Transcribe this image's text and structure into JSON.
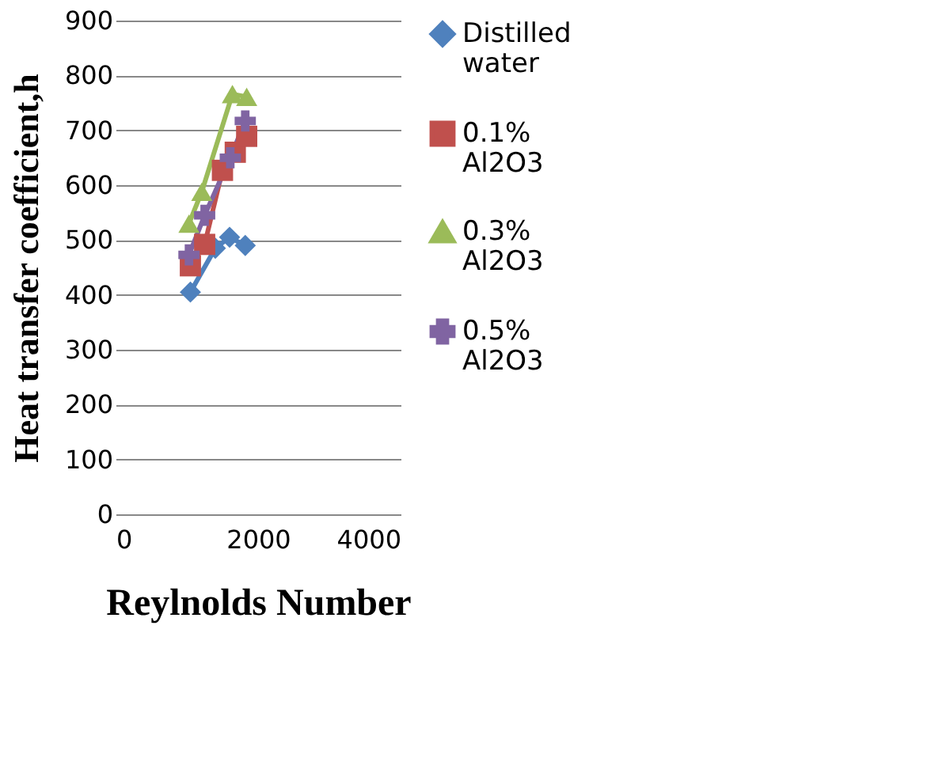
{
  "chart_data": {
    "type": "line",
    "xlabel": "Reylnolds Number",
    "ylabel": "Heat transfer coefficient,h",
    "xlim": [
      0,
      4000
    ],
    "xticks": [
      0,
      2000,
      4000
    ],
    "ylim": [
      0,
      900
    ],
    "yticks": [
      0,
      100,
      200,
      300,
      400,
      500,
      600,
      700,
      800,
      900
    ],
    "grid": "y",
    "legend": "right",
    "series": [
      {
        "name": "Distilled water",
        "color": "#4f81bd",
        "marker": "diamond",
        "x": [
          1050,
          1400,
          1600,
          1820
        ],
        "values": [
          405,
          485,
          505,
          490
        ]
      },
      {
        "name": "0.1% Al2O3",
        "color": "#c0504d",
        "marker": "square",
        "x": [
          1050,
          1250,
          1500,
          1680,
          1840
        ],
        "values": [
          453,
          492,
          627,
          660,
          689
        ]
      },
      {
        "name": "0.3% Al2O3",
        "color": "#9bbb59",
        "marker": "triangle",
        "x": [
          1030,
          1210,
          1640,
          1840
        ],
        "values": [
          530,
          588,
          766,
          761
        ]
      },
      {
        "name": "0.5% Al2O3",
        "color": "#8064a2",
        "marker": "cross",
        "x": [
          1030,
          1250,
          1610,
          1820
        ],
        "values": [
          473,
          545,
          650,
          717
        ]
      }
    ]
  }
}
